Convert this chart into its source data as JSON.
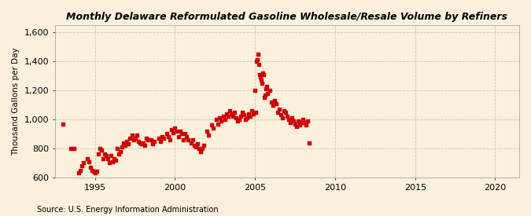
{
  "title": "Monthly Delaware Reformulated Gasoline Wholesale/Resale Volume by Refiners",
  "ylabel": "Thousand Gallons per Day",
  "source": "Source: U.S. Energy Information Administration",
  "bg_color": "#FAF0DC",
  "marker_color": "#CC0000",
  "ylim": [
    600,
    1650
  ],
  "yticks": [
    600,
    800,
    1000,
    1200,
    1400,
    1600
  ],
  "ytick_labels": [
    "600",
    "800",
    "1,000",
    "1,200",
    "1,400",
    "1,600"
  ],
  "xlim": [
    1992.5,
    2021.5
  ],
  "xticks": [
    1995,
    2000,
    2005,
    2010,
    2015,
    2020
  ],
  "data": [
    [
      1993.0,
      970
    ],
    [
      1993.5,
      800
    ],
    [
      1993.7,
      800
    ],
    [
      1994.0,
      630
    ],
    [
      1994.1,
      650
    ],
    [
      1994.2,
      680
    ],
    [
      1994.3,
      700
    ],
    [
      1994.5,
      730
    ],
    [
      1994.6,
      710
    ],
    [
      1994.7,
      670
    ],
    [
      1994.8,
      650
    ],
    [
      1994.9,
      640
    ],
    [
      1995.0,
      630
    ],
    [
      1995.1,
      640
    ],
    [
      1995.2,
      760
    ],
    [
      1995.3,
      800
    ],
    [
      1995.4,
      790
    ],
    [
      1995.5,
      730
    ],
    [
      1995.6,
      760
    ],
    [
      1995.7,
      750
    ],
    [
      1995.8,
      730
    ],
    [
      1995.9,
      700
    ],
    [
      1996.0,
      750
    ],
    [
      1996.1,
      710
    ],
    [
      1996.2,
      730
    ],
    [
      1996.3,
      720
    ],
    [
      1996.4,
      800
    ],
    [
      1996.5,
      760
    ],
    [
      1996.6,
      780
    ],
    [
      1996.7,
      810
    ],
    [
      1996.8,
      840
    ],
    [
      1996.9,
      820
    ],
    [
      1997.0,
      850
    ],
    [
      1997.1,
      830
    ],
    [
      1997.2,
      870
    ],
    [
      1997.3,
      890
    ],
    [
      1997.4,
      860
    ],
    [
      1997.5,
      870
    ],
    [
      1997.6,
      890
    ],
    [
      1997.7,
      850
    ],
    [
      1997.8,
      840
    ],
    [
      1997.9,
      830
    ],
    [
      1998.0,
      840
    ],
    [
      1998.1,
      820
    ],
    [
      1998.2,
      870
    ],
    [
      1998.3,
      860
    ],
    [
      1998.5,
      860
    ],
    [
      1998.6,
      830
    ],
    [
      1998.7,
      850
    ],
    [
      1999.0,
      870
    ],
    [
      1999.1,
      850
    ],
    [
      1999.2,
      880
    ],
    [
      1999.3,
      870
    ],
    [
      1999.5,
      900
    ],
    [
      1999.6,
      880
    ],
    [
      1999.7,
      860
    ],
    [
      1999.8,
      930
    ],
    [
      1999.9,
      910
    ],
    [
      2000.0,
      940
    ],
    [
      2000.1,
      920
    ],
    [
      2000.2,
      880
    ],
    [
      2000.3,
      920
    ],
    [
      2000.4,
      900
    ],
    [
      2000.5,
      860
    ],
    [
      2000.6,
      900
    ],
    [
      2000.7,
      880
    ],
    [
      2000.8,
      860
    ],
    [
      2001.0,
      840
    ],
    [
      2001.1,
      860
    ],
    [
      2001.2,
      820
    ],
    [
      2001.3,
      810
    ],
    [
      2001.4,
      830
    ],
    [
      2001.5,
      800
    ],
    [
      2001.6,
      780
    ],
    [
      2001.7,
      800
    ],
    [
      2001.8,
      820
    ],
    [
      2002.0,
      920
    ],
    [
      2002.1,
      890
    ],
    [
      2002.3,
      960
    ],
    [
      2002.4,
      940
    ],
    [
      2002.6,
      1000
    ],
    [
      2002.7,
      970
    ],
    [
      2002.8,
      1010
    ],
    [
      2002.9,
      990
    ],
    [
      2003.0,
      1020
    ],
    [
      2003.1,
      1000
    ],
    [
      2003.2,
      1040
    ],
    [
      2003.3,
      1020
    ],
    [
      2003.4,
      1060
    ],
    [
      2003.5,
      1040
    ],
    [
      2003.6,
      1020
    ],
    [
      2003.7,
      1050
    ],
    [
      2003.8,
      1010
    ],
    [
      2003.9,
      990
    ],
    [
      2004.0,
      1000
    ],
    [
      2004.1,
      1020
    ],
    [
      2004.2,
      1050
    ],
    [
      2004.3,
      1030
    ],
    [
      2004.4,
      1000
    ],
    [
      2004.5,
      1010
    ],
    [
      2004.6,
      1040
    ],
    [
      2004.7,
      1020
    ],
    [
      2004.8,
      1060
    ],
    [
      2004.9,
      1040
    ],
    [
      2005.0,
      1200
    ],
    [
      2005.05,
      1050
    ],
    [
      2005.1,
      1400
    ],
    [
      2005.15,
      1410
    ],
    [
      2005.2,
      1450
    ],
    [
      2005.25,
      1380
    ],
    [
      2005.3,
      1310
    ],
    [
      2005.35,
      1290
    ],
    [
      2005.4,
      1270
    ],
    [
      2005.45,
      1250
    ],
    [
      2005.5,
      1320
    ],
    [
      2005.55,
      1310
    ],
    [
      2005.6,
      1150
    ],
    [
      2005.65,
      1170
    ],
    [
      2005.7,
      1210
    ],
    [
      2005.75,
      1230
    ],
    [
      2005.8,
      1180
    ],
    [
      2005.9,
      1200
    ],
    [
      2006.0,
      1120
    ],
    [
      2006.1,
      1100
    ],
    [
      2006.2,
      1130
    ],
    [
      2006.3,
      1110
    ],
    [
      2006.4,
      1050
    ],
    [
      2006.5,
      1070
    ],
    [
      2006.6,
      1030
    ],
    [
      2006.7,
      1010
    ],
    [
      2006.8,
      1060
    ],
    [
      2006.9,
      1050
    ],
    [
      2007.0,
      1020
    ],
    [
      2007.1,
      1000
    ],
    [
      2007.2,
      980
    ],
    [
      2007.3,
      1010
    ],
    [
      2007.4,
      990
    ],
    [
      2007.5,
      970
    ],
    [
      2007.6,
      950
    ],
    [
      2007.7,
      990
    ],
    [
      2007.8,
      960
    ],
    [
      2007.9,
      980
    ],
    [
      2008.0,
      1000
    ],
    [
      2008.1,
      980
    ],
    [
      2008.2,
      960
    ],
    [
      2008.3,
      990
    ],
    [
      2008.4,
      840
    ]
  ]
}
